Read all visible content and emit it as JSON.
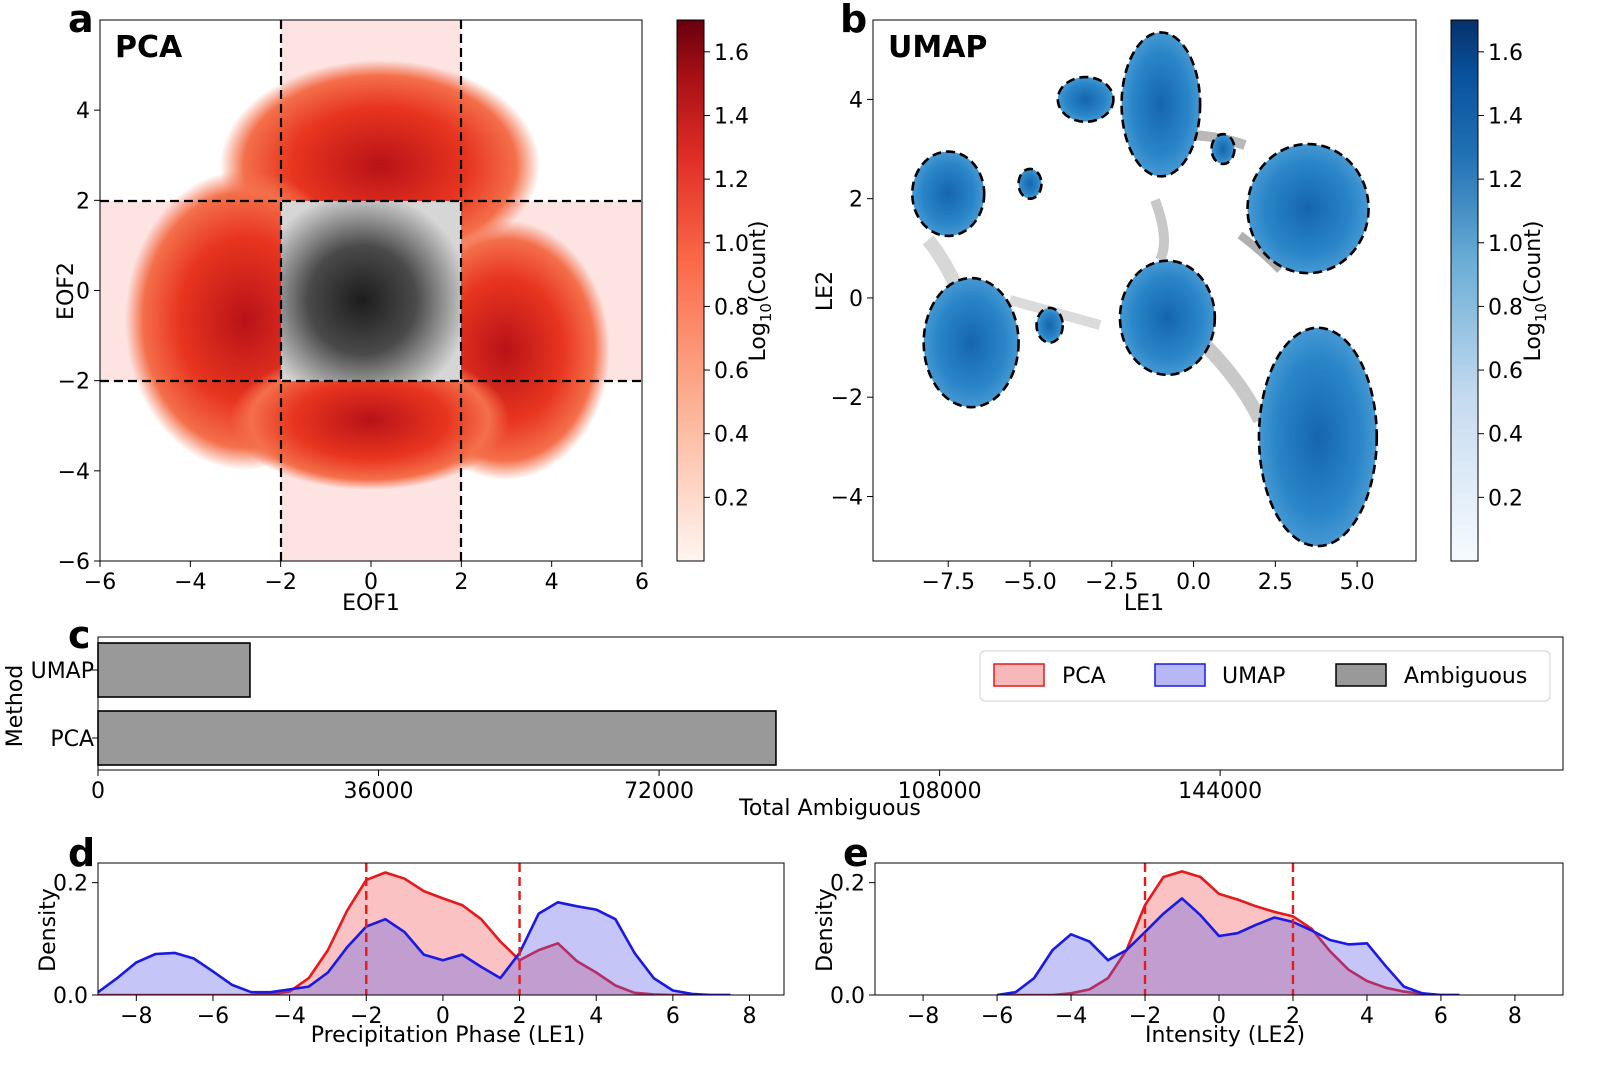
{
  "chart_data": [
    {
      "panel": "a",
      "type": "heatmap",
      "title": "PCA",
      "xlabel": "EOF1",
      "ylabel": "EOF2",
      "xlim": [
        -6,
        6
      ],
      "ylim": [
        -6,
        6
      ],
      "xticks": [
        "−6",
        "−4",
        "−2",
        "0",
        "2",
        "4",
        "6"
      ],
      "xtick_values": [
        -6,
        -4,
        -2,
        0,
        2,
        4,
        6
      ],
      "yticks": [
        "−6",
        "−4",
        "−2",
        "0",
        "2",
        "4"
      ],
      "ytick_values": [
        -6,
        -4,
        -2,
        0,
        2,
        4
      ],
      "thresholds": [
        -2,
        2
      ],
      "colorbar_label": "Log10(Count)",
      "colorbar_label_main": "Log",
      "colorbar_label_sub": "10",
      "colorbar_label_tail": "(Count)",
      "colorbar_range": [
        0,
        1.7
      ],
      "colorbar_ticks": [
        "0.2",
        "0.4",
        "0.6",
        "0.8",
        "1.0",
        "1.2",
        "1.4",
        "1.6"
      ],
      "colorbar_tick_values": [
        0.2,
        0.4,
        0.6,
        0.8,
        1.0,
        1.2,
        1.4,
        1.6
      ],
      "colors": {
        "low": "#fff5f0",
        "mid": "#ef3b2c",
        "high": "#67000d",
        "band": "#fde4e3",
        "ambiguous": "#3a3a3a"
      }
    },
    {
      "panel": "b",
      "type": "heatmap",
      "title": "UMAP",
      "xlabel": "LE1",
      "ylabel": "LE2",
      "xlim": [
        -9.8,
        6.8
      ],
      "ylim": [
        -5.3,
        5.6
      ],
      "xticks": [
        "−7.5",
        "−5.0",
        "−2.5",
        "0.0",
        "2.5",
        "5.0"
      ],
      "xtick_values": [
        -7.5,
        -5.0,
        -2.5,
        0.0,
        2.5,
        5.0
      ],
      "yticks": [
        "−4",
        "−2",
        "0",
        "2",
        "4"
      ],
      "ytick_values": [
        -4,
        -2,
        0,
        2,
        4
      ],
      "clusters": [
        {
          "cx": -7.5,
          "cy": 2.1,
          "rx": 1.1,
          "ry": 0.85
        },
        {
          "cx": -5.0,
          "cy": 2.3,
          "rx": 0.35,
          "ry": 0.3
        },
        {
          "cx": -3.3,
          "cy": 4.0,
          "rx": 0.85,
          "ry": 0.45
        },
        {
          "cx": -1.0,
          "cy": 3.9,
          "rx": 1.2,
          "ry": 1.45
        },
        {
          "cx": 0.9,
          "cy": 3.0,
          "rx": 0.35,
          "ry": 0.3
        },
        {
          "cx": 3.5,
          "cy": 1.8,
          "rx": 1.85,
          "ry": 1.3
        },
        {
          "cx": -6.8,
          "cy": -0.9,
          "rx": 1.45,
          "ry": 1.3
        },
        {
          "cx": -4.4,
          "cy": -0.55,
          "rx": 0.4,
          "ry": 0.35
        },
        {
          "cx": -0.8,
          "cy": -0.4,
          "rx": 1.45,
          "ry": 1.15
        },
        {
          "cx": 3.8,
          "cy": -2.8,
          "rx": 1.8,
          "ry": 2.2
        }
      ],
      "colorbar_label": "Log10(Count)",
      "colorbar_label_main": "Log",
      "colorbar_label_sub": "10",
      "colorbar_label_tail": "(Count)",
      "colorbar_range": [
        0,
        1.7
      ],
      "colorbar_ticks": [
        "0.2",
        "0.4",
        "0.6",
        "0.8",
        "1.0",
        "1.2",
        "1.4",
        "1.6"
      ],
      "colorbar_tick_values": [
        0.2,
        0.4,
        0.6,
        0.8,
        1.0,
        1.2,
        1.4,
        1.6
      ],
      "colors": {
        "low": "#f7fbff",
        "mid": "#2f8ac4",
        "high": "#08306b",
        "cluster": "#1f7fc4",
        "ambiguous": "#9a9a9a"
      }
    },
    {
      "panel": "c",
      "type": "bar",
      "orientation": "horizontal",
      "categories": [
        "UMAP",
        "PCA"
      ],
      "values": [
        19500,
        87000
      ],
      "xlabel": "Total Ambiguous",
      "ylabel": "Method",
      "xlim": [
        0,
        188000
      ],
      "xticks": [
        "0",
        "36000",
        "72000",
        "108000",
        "144000"
      ],
      "xtick_values": [
        0,
        36000,
        72000,
        108000,
        144000
      ],
      "legend": [
        "PCA",
        "UMAP",
        "Ambiguous"
      ],
      "legend_placement": "right",
      "colors": {
        "bar": "#999999",
        "pca_face": "#f6b8b8",
        "pca_edge": "#e41a1c",
        "umap_face": "#b7b7f5",
        "umap_edge": "#1a1ae4",
        "amb_face": "#999999",
        "amb_edge": "#000000"
      }
    },
    {
      "panel": "d",
      "type": "area",
      "xlabel": "Precipitation Phase (LE1)",
      "ylabel": "Density",
      "xlim": [
        -9,
        8.9
      ],
      "ylim": [
        0,
        0.235
      ],
      "xticks": [
        "−8",
        "−6",
        "−4",
        "−2",
        "0",
        "2",
        "4",
        "6",
        "8"
      ],
      "xtick_values": [
        -8,
        -6,
        -4,
        -2,
        0,
        2,
        4,
        6,
        8
      ],
      "yticks": [
        "0.0",
        "0.2"
      ],
      "ytick_values": [
        0.0,
        0.2
      ],
      "thresholds": [
        -2,
        2
      ],
      "x": [
        -9.0,
        -8.5,
        -8.0,
        -7.5,
        -7.0,
        -6.5,
        -6.0,
        -5.5,
        -5.0,
        -4.5,
        -4.0,
        -3.5,
        -3.0,
        -2.5,
        -2.0,
        -1.5,
        -1.0,
        -0.5,
        0.0,
        0.5,
        1.0,
        1.5,
        2.0,
        2.5,
        3.0,
        3.5,
        4.0,
        4.5,
        5.0,
        5.5,
        6.0,
        6.5,
        7.0,
        7.5
      ],
      "series": [
        {
          "name": "PCA",
          "color": "#e41a1c",
          "values": [
            0,
            0,
            0,
            0,
            0,
            0,
            0,
            0,
            0,
            0.001,
            0.006,
            0.03,
            0.08,
            0.15,
            0.205,
            0.218,
            0.207,
            0.185,
            0.172,
            0.16,
            0.135,
            0.095,
            0.062,
            0.08,
            0.092,
            0.06,
            0.04,
            0.017,
            0.004,
            0.001,
            0,
            0,
            0,
            0
          ]
        },
        {
          "name": "UMAP",
          "color": "#1a1ae4",
          "values": [
            0.005,
            0.03,
            0.058,
            0.073,
            0.075,
            0.065,
            0.042,
            0.018,
            0.005,
            0.005,
            0.01,
            0.015,
            0.04,
            0.085,
            0.122,
            0.135,
            0.112,
            0.072,
            0.062,
            0.072,
            0.05,
            0.03,
            0.075,
            0.145,
            0.165,
            0.158,
            0.152,
            0.135,
            0.075,
            0.03,
            0.008,
            0.002,
            0,
            0
          ]
        }
      ]
    },
    {
      "panel": "e",
      "type": "area",
      "xlabel": "Intensity (LE2)",
      "ylabel": "Density",
      "xlim": [
        -9.3,
        9.3
      ],
      "ylim": [
        0,
        0.235
      ],
      "xticks": [
        "−8",
        "−6",
        "−4",
        "−2",
        "0",
        "2",
        "4",
        "6",
        "8"
      ],
      "xtick_values": [
        -8,
        -6,
        -4,
        -2,
        0,
        2,
        4,
        6,
        8
      ],
      "yticks": [
        "0.0",
        "0.2"
      ],
      "ytick_values": [
        0.0,
        0.2
      ],
      "thresholds": [
        -2,
        2
      ],
      "x": [
        -6.0,
        -5.5,
        -5.0,
        -4.5,
        -4.0,
        -3.5,
        -3.0,
        -2.5,
        -2.0,
        -1.5,
        -1.0,
        -0.5,
        0.0,
        0.5,
        1.0,
        1.5,
        2.0,
        2.5,
        3.0,
        3.5,
        4.0,
        4.5,
        5.0,
        5.5,
        6.0,
        6.5
      ],
      "series": [
        {
          "name": "PCA",
          "color": "#e41a1c",
          "values": [
            0,
            0,
            0,
            0,
            0.003,
            0.01,
            0.03,
            0.08,
            0.16,
            0.21,
            0.22,
            0.21,
            0.18,
            0.17,
            0.158,
            0.148,
            0.14,
            0.118,
            0.078,
            0.045,
            0.025,
            0.013,
            0.006,
            0.002,
            0,
            0
          ]
        },
        {
          "name": "UMAP",
          "color": "#1a1ae4",
          "values": [
            0,
            0.005,
            0.03,
            0.08,
            0.108,
            0.095,
            0.062,
            0.08,
            0.112,
            0.145,
            0.172,
            0.142,
            0.105,
            0.11,
            0.125,
            0.138,
            0.13,
            0.115,
            0.098,
            0.09,
            0.092,
            0.052,
            0.015,
            0.003,
            0,
            0
          ]
        }
      ]
    }
  ],
  "panel_labels": {
    "a": "a",
    "b": "b",
    "c": "c",
    "d": "d",
    "e": "e"
  }
}
